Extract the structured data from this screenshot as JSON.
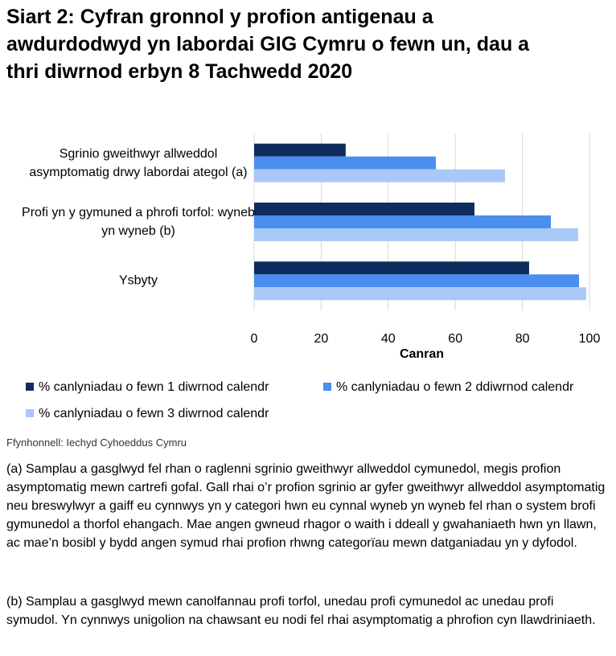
{
  "chart_data": {
    "type": "hbar",
    "title": "Siart 2: Cyfran gronnol y profion antigenau a awdurdodwyd yn labordai GIG Cymru o fewn un, dau a thri diwrnod erbyn 8 Tachwedd 2020",
    "categories": [
      "Sgrinio gweithwyr allweddol asymptomatig drwy labordai ategol (a)",
      "Profi yn y gymuned a phrofi torfol: wyneb yn wyneb (b)",
      "Ysbyty"
    ],
    "series": [
      {
        "name": "% canlyniadau o fewn 1 diwrnod calendr",
        "color": "#0e2d5e",
        "values": [
          27.3,
          65.7,
          82
        ]
      },
      {
        "name": "% canlyniadau o fewn 2 ddiwrnod calendr",
        "color": "#4a8ef0",
        "values": [
          54.2,
          88.5,
          96.9
        ]
      },
      {
        "name": "% canlyniadau o fewn 3 diwrnod calendr",
        "color": "#a8c9f6",
        "values": [
          74.8,
          96.6,
          99
        ]
      }
    ],
    "x_label": "Canran",
    "xlim": [
      0,
      100
    ],
    "xticks": [
      0,
      20,
      40,
      60,
      80,
      100
    ],
    "grid": true
  },
  "source": "Ffynhonnell: Iechyd Cyhoeddus Cymru",
  "notes": [
    "(a) Samplau a gasglwyd fel rhan o raglenni sgrinio gweithwyr allweddol cymunedol, megis profion asymptomatig mewn cartrefi gofal. Gall rhai o’r profion sgrinio ar gyfer gweithwyr allweddol asymptomatig neu breswylwyr a gaiff eu cynnwys yn y categori hwn eu cynnal wyneb yn wyneb fel rhan o system brofi gymunedol a thorfol ehangach. Mae angen gwneud rhagor o waith i ddeall y gwahaniaeth hwn yn llawn, ac mae’n bosibl y bydd angen symud rhai profion rhwng categorïau mewn datganiadau yn y dyfodol.",
    "(b) Samplau a gasglwyd mewn canolfannau profi torfol, unedau profi cymunedol ac unedau profi symudol. Yn cynnwys unigolion na chawsant eu nodi fel rhai asymptomatig a phrofion cyn llawdriniaeth."
  ]
}
